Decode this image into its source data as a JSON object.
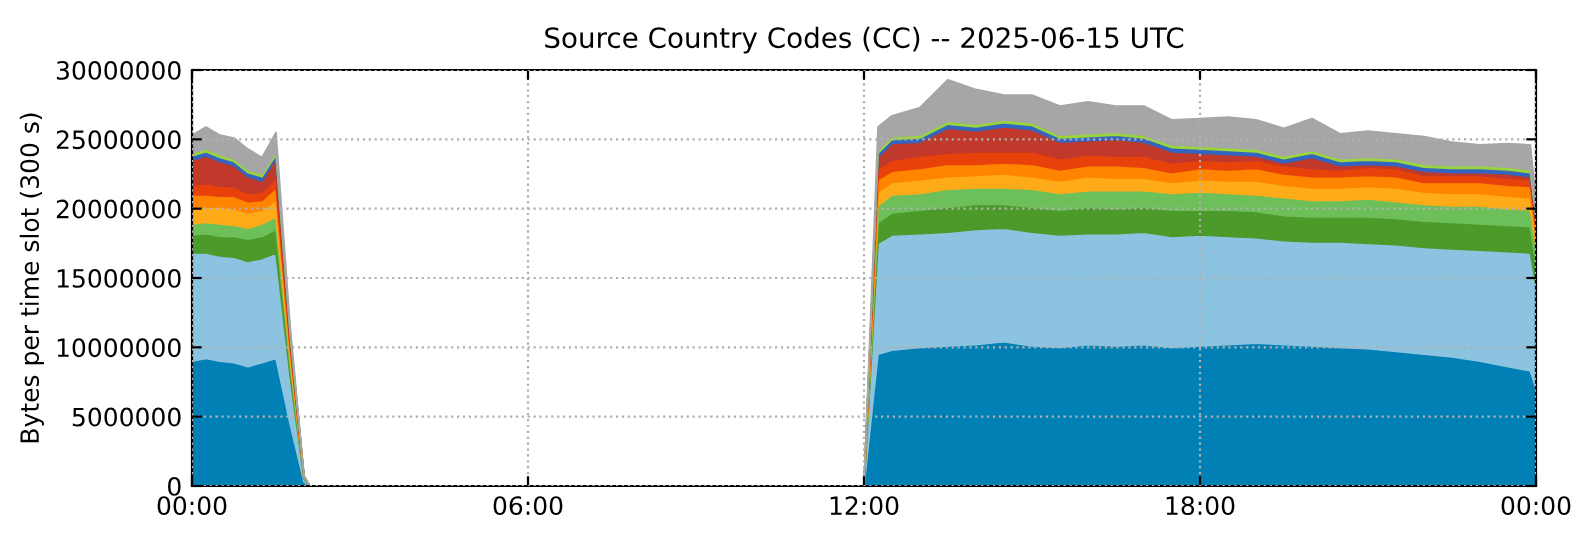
{
  "chart_data": {
    "type": "area",
    "stacked": true,
    "title": "Source Country Codes (CC) -- 2025-06-15 UTC",
    "ylabel": "Bytes per time slot (300 s)",
    "x": [
      0,
      0.25,
      0.5,
      0.75,
      1,
      1.25,
      1.5,
      1.75,
      2,
      2.1,
      6,
      12,
      12.25,
      12.5,
      13,
      13.5,
      14,
      14.5,
      15,
      15.5,
      16,
      16.5,
      17,
      17.5,
      18,
      18.5,
      19,
      19.5,
      20,
      20.5,
      21,
      21.5,
      22,
      22.5,
      23,
      23.5,
      23.9,
      24
    ],
    "xlim": [
      0,
      24
    ],
    "xticks": [
      {
        "value": 0,
        "label": "00:00"
      },
      {
        "value": 6,
        "label": "06:00"
      },
      {
        "value": 12,
        "label": "12:00"
      },
      {
        "value": 18,
        "label": "18:00"
      },
      {
        "value": 24,
        "label": "00:00"
      }
    ],
    "ylim": [
      0,
      30000000
    ],
    "yticks": [
      0,
      5000000,
      10000000,
      15000000,
      20000000,
      25000000,
      30000000
    ],
    "grid": true,
    "line_style": "dotted",
    "series": [
      {
        "color": "#0080b4",
        "values": [
          9000000.0,
          9200000.0,
          9000000.0,
          8900000.0,
          8600000.0,
          8900000.0,
          9200000.0,
          4500000.0,
          300000.0,
          0,
          0,
          0,
          9500000.0,
          9800000.0,
          10000000.0,
          10100000.0,
          10200000.0,
          10400000.0,
          10100000.0,
          10000000.0,
          10200000.0,
          10100000.0,
          10200000.0,
          10000000.0,
          10100000.0,
          10200000.0,
          10300000.0,
          10200000.0,
          10100000.0,
          10000000.0,
          9900000.0,
          9700000.0,
          9500000.0,
          9300000.0,
          9000000.0,
          8600000.0,
          8300000.0,
          7000000.0
        ]
      },
      {
        "color": "#8cc3e0",
        "values": [
          7800000.0,
          7600000.0,
          7600000.0,
          7600000.0,
          7600000.0,
          7500000.0,
          7600000.0,
          3500000.0,
          200000.0,
          0,
          0,
          0,
          8000000.0,
          8300000.0,
          8200000.0,
          8200000.0,
          8300000.0,
          8200000.0,
          8200000.0,
          8100000.0,
          8000000.0,
          8100000.0,
          8100000.0,
          8000000.0,
          8000000.0,
          7800000.0,
          7600000.0,
          7500000.0,
          7500000.0,
          7600000.0,
          7600000.0,
          7700000.0,
          7700000.0,
          7800000.0,
          8000000.0,
          8300000.0,
          8500000.0,
          7500000.0
        ]
      },
      {
        "color": "#4c9a2a",
        "values": [
          1300000.0,
          1400000.0,
          1400000.0,
          1500000.0,
          1600000.0,
          1600000.0,
          1700000.0,
          800000.0,
          100000.0,
          0,
          0,
          0,
          1500000.0,
          1600000.0,
          1700000.0,
          1800000.0,
          1800000.0,
          1700000.0,
          1800000.0,
          1800000.0,
          1900000.0,
          1800000.0,
          1800000.0,
          1900000.0,
          1800000.0,
          1900000.0,
          1900000.0,
          1800000.0,
          1800000.0,
          1800000.0,
          1900000.0,
          1900000.0,
          1900000.0,
          1900000.0,
          1900000.0,
          1900000.0,
          1900000.0,
          1500000.0
        ]
      },
      {
        "color": "#6dbf5a",
        "values": [
          800000.0,
          800000.0,
          900000.0,
          800000.0,
          800000.0,
          900000.0,
          900000.0,
          400000.0,
          30000.0,
          0,
          0,
          0,
          1200000.0,
          1300000.0,
          1200000.0,
          1300000.0,
          1200000.0,
          1200000.0,
          1300000.0,
          1200000.0,
          1200000.0,
          1300000.0,
          1200000.0,
          1200000.0,
          1300000.0,
          1200000.0,
          1200000.0,
          1300000.0,
          1200000.0,
          1200000.0,
          1300000.0,
          1200000.0,
          1200000.0,
          1200000.0,
          1300000.0,
          1200000.0,
          1200000.0,
          1200000.0
        ]
      },
      {
        "color": "#ffaa18",
        "values": [
          1200000.0,
          1100000.0,
          1200000.0,
          1200000.0,
          1100000.0,
          1000000.0,
          1200000.0,
          600000.0,
          30000.0,
          0,
          0,
          0,
          1000000.0,
          900000.0,
          1000000.0,
          900000.0,
          900000.0,
          1000000.0,
          900000.0,
          900000.0,
          1000000.0,
          900000.0,
          900000.0,
          800000.0,
          900000.0,
          900000.0,
          1000000.0,
          900000.0,
          900000.0,
          900000.0,
          900000.0,
          1000000.0,
          900000.0,
          900000.0,
          900000.0,
          900000.0,
          900000.0,
          800000.0
        ]
      },
      {
        "color": "#ff8400",
        "values": [
          900000.0,
          900000.0,
          800000.0,
          900000.0,
          800000.0,
          700000.0,
          900000.0,
          400000.0,
          20000.0,
          0,
          0,
          0,
          900000.0,
          800000.0,
          800000.0,
          900000.0,
          800000.0,
          800000.0,
          900000.0,
          800000.0,
          800000.0,
          900000.0,
          800000.0,
          700000.0,
          800000.0,
          800000.0,
          900000.0,
          800000.0,
          800000.0,
          800000.0,
          800000.0,
          800000.0,
          700000.0,
          800000.0,
          800000.0,
          800000.0,
          800000.0,
          600000.0
        ]
      },
      {
        "color": "#e8420a",
        "values": [
          700000.0,
          800000.0,
          700000.0,
          700000.0,
          600000.0,
          600000.0,
          700000.0,
          300000.0,
          20000.0,
          0,
          0,
          0,
          800000.0,
          800000.0,
          900000.0,
          800000.0,
          900000.0,
          800000.0,
          900000.0,
          800000.0,
          800000.0,
          700000.0,
          800000.0,
          700000.0,
          600000.0,
          600000.0,
          600000.0,
          600000.0,
          600000.0,
          500000.0,
          600000.0,
          600000.0,
          500000.0,
          500000.0,
          500000.0,
          500000.0,
          500000.0,
          400000.0
        ]
      },
      {
        "color": "#c0392b",
        "values": [
          1800000.0,
          2000000.0,
          1800000.0,
          1500000.0,
          1200000.0,
          800000.0,
          1400000.0,
          500000.0,
          20000.0,
          0,
          0,
          0,
          800000.0,
          1200000.0,
          1000000.0,
          1800000.0,
          1500000.0,
          1800000.0,
          1600000.0,
          1200000.0,
          1000000.0,
          1200000.0,
          1000000.0,
          800000.0,
          500000.0,
          500000.0,
          300000.0,
          200000.0,
          800000.0,
          300000.0,
          200000.0,
          200000.0,
          300000.0,
          200000.0,
          200000.0,
          300000.0,
          200000.0,
          200000.0
        ]
      },
      {
        "color": "#3465c0",
        "values": [
          300000.0,
          300000.0,
          300000.0,
          300000.0,
          300000.0,
          300000.0,
          300000.0,
          100000.0,
          0,
          0,
          0,
          0,
          300000.0,
          300000.0,
          300000.0,
          300000.0,
          300000.0,
          300000.0,
          300000.0,
          300000.0,
          300000.0,
          300000.0,
          300000.0,
          300000.0,
          300000.0,
          300000.0,
          300000.0,
          300000.0,
          300000.0,
          300000.0,
          300000.0,
          300000.0,
          300000.0,
          300000.0,
          300000.0,
          300000.0,
          300000.0,
          200000.0
        ]
      },
      {
        "color": "#99d63a",
        "values": [
          200000.0,
          200000.0,
          200000.0,
          200000.0,
          200000.0,
          200000.0,
          200000.0,
          100000.0,
          0,
          0,
          0,
          0,
          200000.0,
          200000.0,
          200000.0,
          200000.0,
          200000.0,
          200000.0,
          200000.0,
          200000.0,
          200000.0,
          200000.0,
          200000.0,
          200000.0,
          200000.0,
          200000.0,
          200000.0,
          200000.0,
          200000.0,
          200000.0,
          200000.0,
          200000.0,
          200000.0,
          200000.0,
          200000.0,
          200000.0,
          200000.0,
          100000.0
        ]
      },
      {
        "color": "#a6a6a6",
        "values": [
          1300000.0,
          1600000.0,
          1400000.0,
          1500000.0,
          1500000.0,
          1200000.0,
          1400000.0,
          500000.0,
          30000.0,
          0,
          0,
          0,
          1700000.0,
          1500000.0,
          2000000.0,
          3000000.0,
          2500000.0,
          1800000.0,
          2000000.0,
          2100000.0,
          2300000.0,
          1900000.0,
          2100000.0,
          1800000.0,
          2000000.0,
          2200000.0,
          2100000.0,
          2000000.0,
          2300000.0,
          1800000.0,
          1900000.0,
          1800000.0,
          2000000.0,
          1700000.0,
          1500000.0,
          1700000.0,
          1800000.0,
          1200000.0
        ]
      }
    ]
  }
}
